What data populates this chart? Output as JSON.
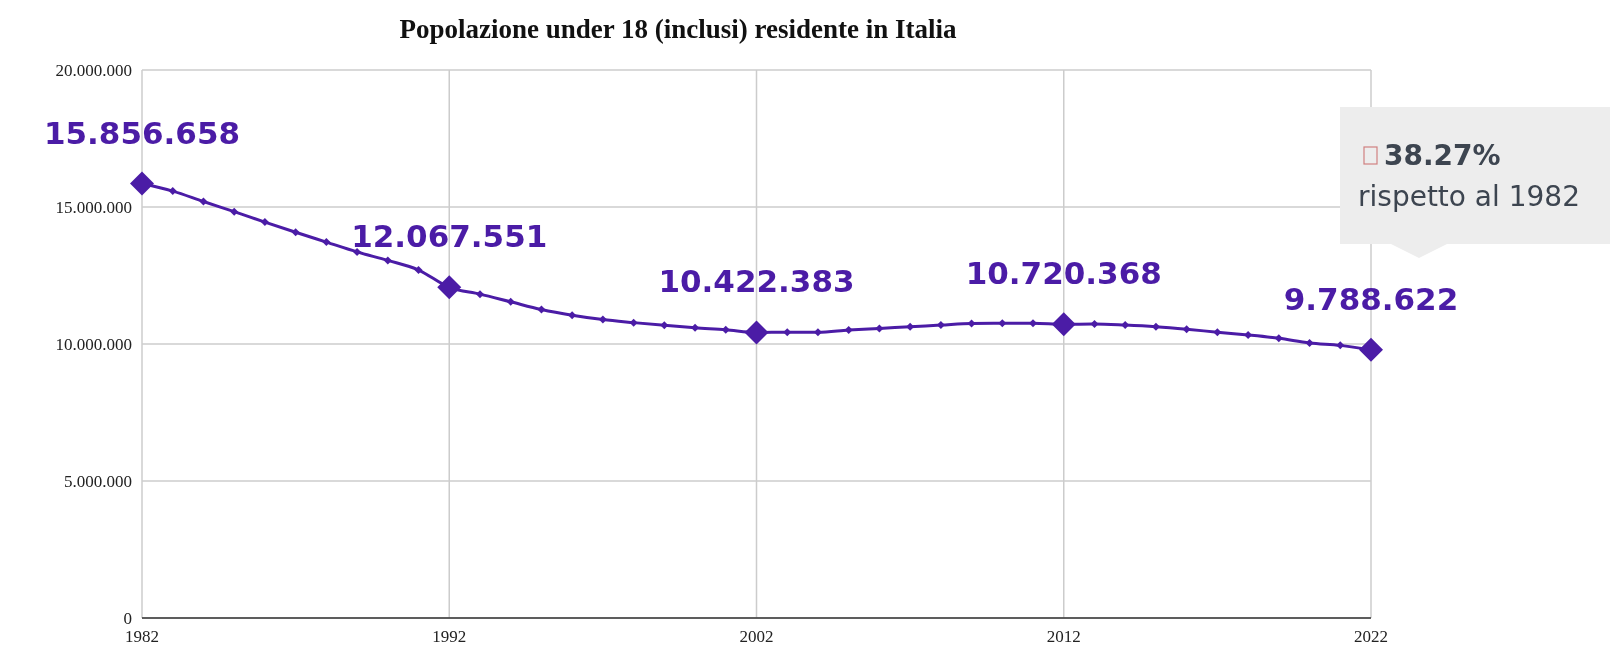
{
  "chart_data": {
    "type": "line",
    "title": "Popolazione under 18 (inclusi) residente in Italia",
    "x": [
      1982,
      1983,
      1984,
      1985,
      1986,
      1987,
      1988,
      1989,
      1990,
      1991,
      1992,
      1993,
      1994,
      1995,
      1996,
      1997,
      1998,
      1999,
      2000,
      2001,
      2002,
      2003,
      2004,
      2005,
      2006,
      2007,
      2008,
      2009,
      2010,
      2011,
      2012,
      2013,
      2014,
      2015,
      2016,
      2017,
      2018,
      2019,
      2020,
      2021,
      2022
    ],
    "series": [
      {
        "color": "#4b1ca6",
        "values": [
          15856658,
          15580000,
          15200000,
          14830000,
          14450000,
          14080000,
          13720000,
          13360000,
          13050000,
          12700000,
          12067551,
          11820000,
          11540000,
          11260000,
          11050000,
          10890000,
          10780000,
          10680000,
          10590000,
          10520000,
          10422383,
          10430000,
          10430000,
          10510000,
          10570000,
          10630000,
          10690000,
          10750000,
          10760000,
          10760000,
          10720368,
          10730000,
          10690000,
          10630000,
          10540000,
          10430000,
          10330000,
          10210000,
          10040000,
          9950000,
          9788622
        ],
        "value_labels": [
          "15.856.658",
          null,
          null,
          null,
          null,
          null,
          null,
          null,
          null,
          null,
          "12.067.551",
          null,
          null,
          null,
          null,
          null,
          null,
          null,
          null,
          null,
          "10.422.383",
          null,
          null,
          null,
          null,
          null,
          null,
          null,
          null,
          null,
          "10.720.368",
          null,
          null,
          null,
          null,
          null,
          null,
          null,
          null,
          null,
          "9.788.622"
        ]
      }
    ],
    "xlim": [
      1982,
      2022
    ],
    "xticks": [
      1982,
      1992,
      2002,
      2012,
      2022
    ],
    "ylim": [
      0,
      20000000
    ],
    "yticks": [
      {
        "value": 0,
        "label": "0"
      },
      {
        "value": 5000000,
        "label": "5.000.000"
      },
      {
        "value": 10000000,
        "label": "10.000.000"
      },
      {
        "value": 15000000,
        "label": "15.000.000"
      },
      {
        "value": 20000000,
        "label": "20.000.000"
      }
    ],
    "grid": true,
    "marker": "diamond",
    "line_style": "solid",
    "annotations": [
      "38.27%",
      "rispetto al 1982"
    ]
  }
}
